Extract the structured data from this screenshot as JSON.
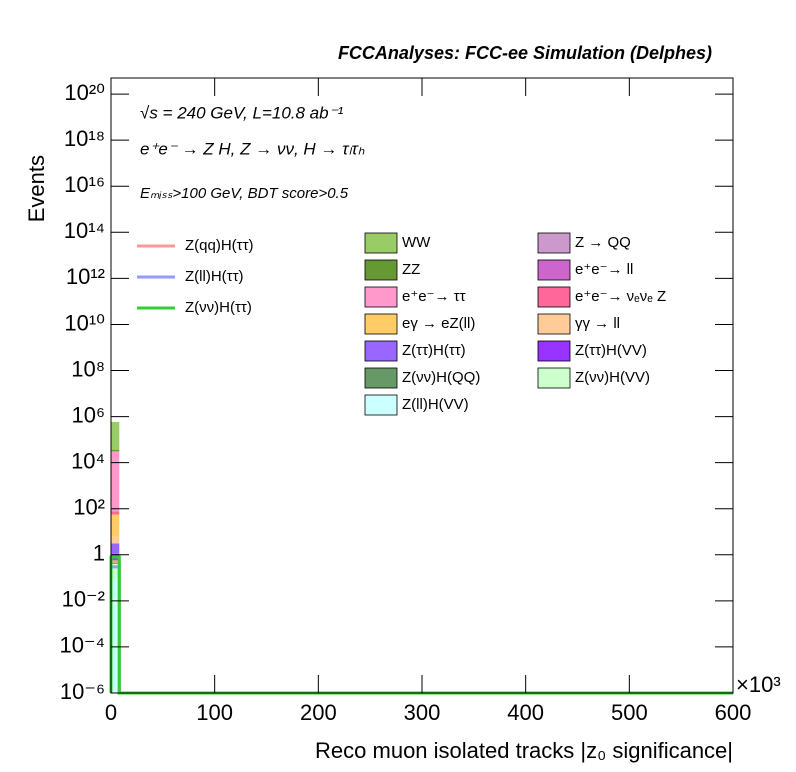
{
  "chart_data": {
    "type": "stacked_histogram",
    "title": "FCCAnalyses: FCC-ee Simulation (Delphes)",
    "annotations": [
      "√s = 240 GeV, L=10.8 ab⁻¹",
      "e⁺e⁻ → Z H, Z → νν, H → τₗτₕ",
      "Eₘᵢₛₛ>100 GeV, BDT score>0.5"
    ],
    "x_label": "Reco muon isolated tracks |z₀ significance|",
    "x_multiplier": "×10³",
    "y_label": "Events",
    "log_y": true,
    "bins": [
      0,
      8,
      600
    ],
    "xlim": [
      0,
      600
    ],
    "xticks": [
      0,
      100,
      200,
      300,
      400,
      500,
      600
    ],
    "ylim": [
      1e-06,
      5e+20
    ],
    "yticks": [
      {
        "value": 1e-06,
        "label": "10⁻⁶"
      },
      {
        "value": 0.0001,
        "label": "10⁻⁴"
      },
      {
        "value": 0.01,
        "label": "10⁻²"
      },
      1,
      {
        "value": 100,
        "label": "10²"
      },
      {
        "value": 10000,
        "label": "10⁴"
      },
      {
        "value": 1000000.0,
        "label": "10⁶"
      },
      {
        "value": 100000000.0,
        "label": "10⁸"
      },
      {
        "value": 10000000000.0,
        "label": "10¹⁰"
      },
      {
        "value": 1000000000000.0,
        "label": "10¹²"
      },
      {
        "value": 100000000000000.0,
        "label": "10¹⁴"
      },
      {
        "value": 1e+16,
        "label": "10¹⁶"
      },
      {
        "value": 1e+18,
        "label": "10¹⁸"
      },
      {
        "value": 1e+20,
        "label": "10²⁰"
      }
    ],
    "series": [
      {
        "name": "WW",
        "color": "#99cc66",
        "values": [
          550000,
          0
        ]
      },
      {
        "name": "Z → QQ",
        "color": "#cc99cc",
        "values": [
          200,
          0
        ]
      },
      {
        "name": "ZZ",
        "color": "#669933",
        "values": [
          5000,
          0
        ]
      },
      {
        "name": "e⁺e⁻→ ll",
        "color": "#cc66cc",
        "values": [
          1500,
          0
        ]
      },
      {
        "name": "e⁺e⁻→ ττ",
        "color": "#ff99cc",
        "values": [
          30000,
          0
        ]
      },
      {
        "name": "e⁺e⁻→ νₑνₑ Z",
        "color": "#ff6699",
        "values": [
          20,
          0
        ]
      },
      {
        "name": "eγ → eZ(ll)",
        "color": "#ffcc66",
        "values": [
          50,
          0
        ]
      },
      {
        "name": "γγ → ll",
        "color": "#ffcc99",
        "values": [
          3,
          0
        ]
      },
      {
        "name": "Z(ττ)H(ττ)",
        "color": "#9966ff",
        "values": [
          2,
          0
        ]
      },
      {
        "name": "Z(ττ)H(VV)",
        "color": "#9933ff",
        "values": [
          0.5,
          0
        ]
      },
      {
        "name": "Z(νν)H(QQ)",
        "color": "#669966",
        "values": [
          0.2,
          0
        ]
      },
      {
        "name": "Z(νν)H(VV)",
        "color": "#ccffcc",
        "values": [
          0.3,
          0
        ]
      },
      {
        "name": "Z(ll)H(VV)",
        "color": "#ccffff",
        "values": [
          0.1,
          0
        ]
      }
    ],
    "signals": [
      {
        "name": "Z(qq)H(ττ)",
        "color": "#ff9999",
        "values": [
          0.5,
          0
        ]
      },
      {
        "name": "Z(ll)H(ττ)",
        "color": "#9999ff",
        "values": [
          0.3,
          0
        ]
      },
      {
        "name": "Z(νν)H(ττ)",
        "color": "#33cc33",
        "values": [
          0.8,
          0
        ]
      }
    ]
  }
}
